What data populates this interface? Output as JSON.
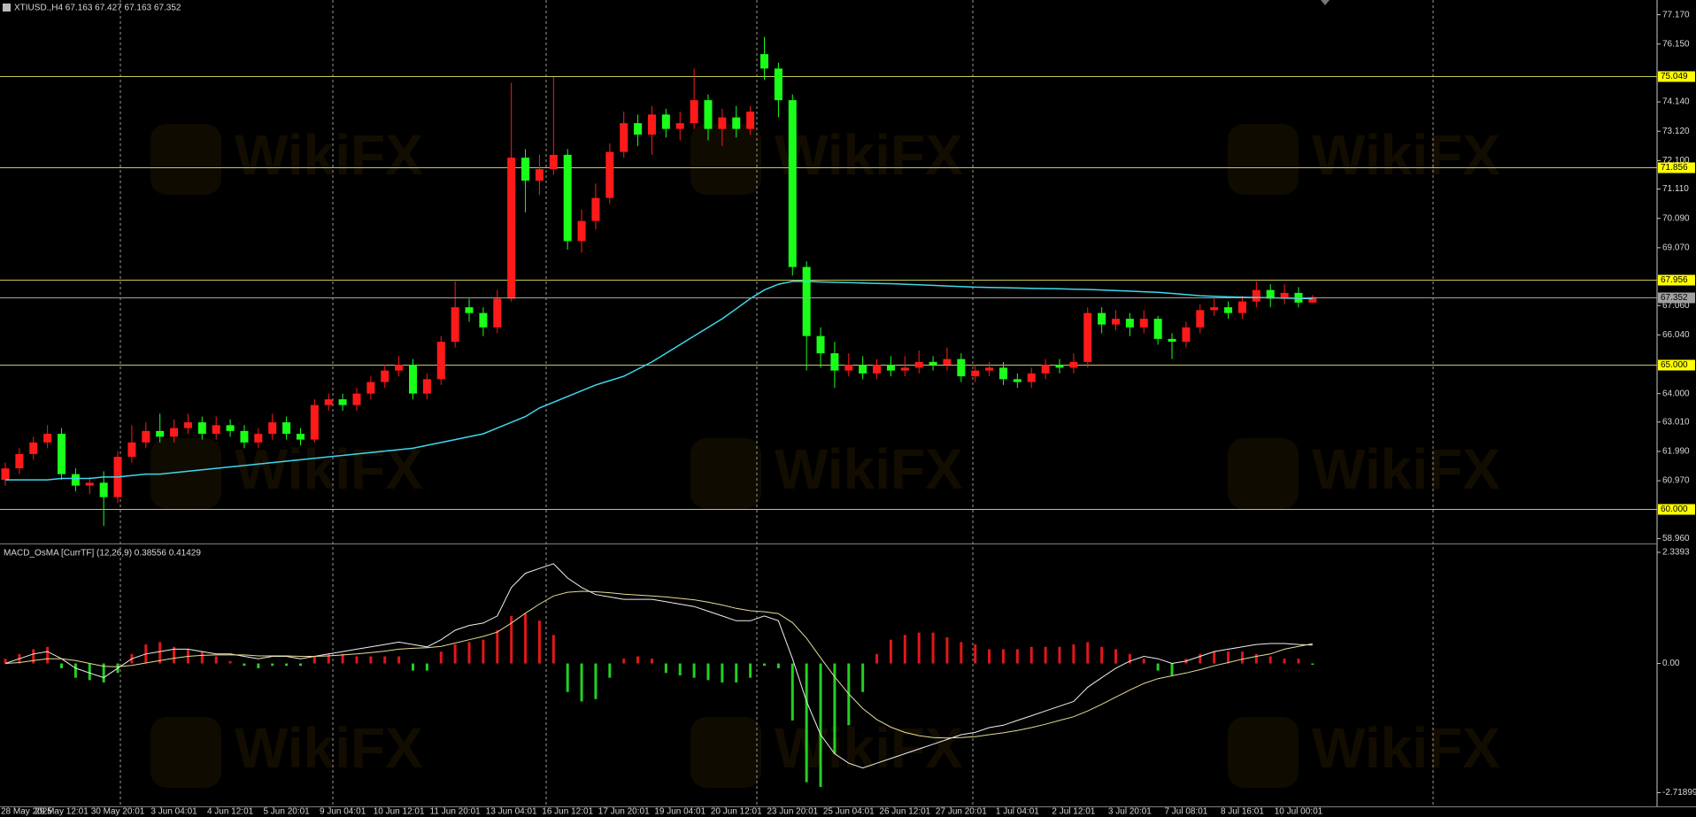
{
  "watermark": "WikiFX",
  "chart_data": [
    {
      "type": "candlestick",
      "title": "XTIUSD.,H4  67.163 67.427 67.163 67.352",
      "categories": [
        "28 May 2025",
        null,
        null,
        null,
        "29 May 12:01",
        null,
        null,
        null,
        "30 May 20:01",
        null,
        null,
        null,
        "3 Jun 04:01",
        null,
        null,
        null,
        "4 Jun 12:01",
        null,
        null,
        null,
        "5 Jun 20:01",
        null,
        null,
        null,
        "9 Jun 04:01",
        null,
        null,
        null,
        "10 Jun 12:01",
        null,
        null,
        null,
        "11 Jun 20:01",
        null,
        null,
        null,
        "13 Jun 04:01",
        null,
        null,
        null,
        "16 Jun 12:01",
        null,
        null,
        null,
        "17 Jun 20:01",
        null,
        null,
        null,
        "19 Jun 04:01",
        null,
        null,
        null,
        "20 Jun 12:01",
        null,
        null,
        null,
        "23 Jun 20:01",
        null,
        null,
        null,
        "25 Jun 04:01",
        null,
        null,
        null,
        "26 Jun 12:01",
        null,
        null,
        null,
        "27 Jun 20:01",
        null,
        null,
        null,
        "1 Jul 04:01",
        null,
        null,
        null,
        "2 Jul 12:01",
        null,
        null,
        null,
        "3 Jul 20:01",
        null,
        null,
        null,
        "7 Jul 08:01",
        null,
        null,
        null,
        "8 Jul 16:01",
        null,
        null,
        null,
        "10 Jul 00:01",
        null
      ],
      "open": [
        61.0,
        61.4,
        61.9,
        62.3,
        62.6,
        61.2,
        60.8,
        60.9,
        60.4,
        61.8,
        62.3,
        62.7,
        62.5,
        62.8,
        63.0,
        62.6,
        62.9,
        62.7,
        62.3,
        62.6,
        63.0,
        62.6,
        62.4,
        63.6,
        63.8,
        63.6,
        64.0,
        64.4,
        64.8,
        65.0,
        64.0,
        64.5,
        65.8,
        67.0,
        66.8,
        66.3,
        67.3,
        72.2,
        71.4,
        71.8,
        72.3,
        69.3,
        70.0,
        70.8,
        72.4,
        73.4,
        73.0,
        73.7,
        73.2,
        73.4,
        74.2,
        73.2,
        73.6,
        73.2,
        75.8,
        75.3,
        74.2,
        68.4,
        66.0,
        65.4,
        64.8,
        65.0,
        64.7,
        65.0,
        64.8,
        64.9,
        65.1,
        65.0,
        65.2,
        64.6,
        64.8,
        64.9,
        64.5,
        64.4,
        64.7,
        65.0,
        64.9,
        65.1,
        66.8,
        66.4,
        66.6,
        66.3,
        66.6,
        65.9,
        65.8,
        66.3,
        66.9,
        67.0,
        66.8,
        67.2,
        67.6,
        67.3,
        67.5,
        67.163
      ],
      "high": [
        61.6,
        62.1,
        62.5,
        62.9,
        62.8,
        61.4,
        61.1,
        61.3,
        62.0,
        62.9,
        63.0,
        63.3,
        63.1,
        63.3,
        63.2,
        63.2,
        63.1,
        62.9,
        62.8,
        63.3,
        63.2,
        62.8,
        63.8,
        64.0,
        64.0,
        64.2,
        64.6,
        65.0,
        65.3,
        65.2,
        64.7,
        66.0,
        67.9,
        67.3,
        67.0,
        67.6,
        74.8,
        72.5,
        72.3,
        75.0,
        72.5,
        70.4,
        71.3,
        72.7,
        73.8,
        73.7,
        74.0,
        73.9,
        73.8,
        75.3,
        74.4,
        73.9,
        74.0,
        74.0,
        76.4,
        75.5,
        74.4,
        68.6,
        66.3,
        65.8,
        65.4,
        65.3,
        65.2,
        65.3,
        65.3,
        65.5,
        65.3,
        65.6,
        65.4,
        65.0,
        65.1,
        65.1,
        64.7,
        64.9,
        65.2,
        65.2,
        65.4,
        67.0,
        67.0,
        66.9,
        66.8,
        66.9,
        66.7,
        66.1,
        66.5,
        67.1,
        67.3,
        67.2,
        67.4,
        67.9,
        67.8,
        67.8,
        67.7,
        67.427
      ],
      "low": [
        60.8,
        61.2,
        61.7,
        62.1,
        61.0,
        60.6,
        60.5,
        59.4,
        60.2,
        61.6,
        62.1,
        62.3,
        62.3,
        62.6,
        62.4,
        62.4,
        62.5,
        62.1,
        62.1,
        62.4,
        62.4,
        62.2,
        62.3,
        63.4,
        63.4,
        63.4,
        63.8,
        64.2,
        64.6,
        63.8,
        63.8,
        64.3,
        65.6,
        66.5,
        66.0,
        66.1,
        67.2,
        70.3,
        70.9,
        71.6,
        69.0,
        68.9,
        69.7,
        70.6,
        72.2,
        72.6,
        72.3,
        72.9,
        72.8,
        73.2,
        72.8,
        72.6,
        72.9,
        73.0,
        74.9,
        73.6,
        68.1,
        64.8,
        64.9,
        64.2,
        64.6,
        64.5,
        64.5,
        64.6,
        64.6,
        64.7,
        64.8,
        64.8,
        64.4,
        64.4,
        64.6,
        64.3,
        64.2,
        64.2,
        64.5,
        64.7,
        64.7,
        64.9,
        66.1,
        66.2,
        66.0,
        66.1,
        65.7,
        65.2,
        65.6,
        66.1,
        66.7,
        66.6,
        66.6,
        67.0,
        67.0,
        67.1,
        67.0,
        67.163
      ],
      "close": [
        61.4,
        61.9,
        62.3,
        62.6,
        61.2,
        60.8,
        60.9,
        60.4,
        61.8,
        62.3,
        62.7,
        62.5,
        62.8,
        63.0,
        62.6,
        62.9,
        62.7,
        62.3,
        62.6,
        63.0,
        62.6,
        62.4,
        63.6,
        63.8,
        63.6,
        64.0,
        64.4,
        64.8,
        65.0,
        64.0,
        64.5,
        65.8,
        67.0,
        66.8,
        66.3,
        67.3,
        72.2,
        71.4,
        71.8,
        72.3,
        69.3,
        70.0,
        70.8,
        72.4,
        73.4,
        73.0,
        73.7,
        73.2,
        73.4,
        74.2,
        73.2,
        73.6,
        73.2,
        73.8,
        75.3,
        74.2,
        68.4,
        66.0,
        65.4,
        64.8,
        65.0,
        64.7,
        65.0,
        64.8,
        64.9,
        65.1,
        65.0,
        65.2,
        64.6,
        64.8,
        64.9,
        64.5,
        64.4,
        64.7,
        65.0,
        64.9,
        65.1,
        66.8,
        66.4,
        66.6,
        66.3,
        66.6,
        65.9,
        65.8,
        66.3,
        66.9,
        67.0,
        66.8,
        67.2,
        67.6,
        67.3,
        67.5,
        67.163,
        67.352
      ],
      "up_color": "#ff1a1a",
      "down_color": "#1aff1a",
      "ma": {
        "color": "#3fd8ec",
        "values": [
          61.0,
          61.0,
          61.0,
          61.0,
          61.05,
          61.05,
          61.05,
          61.1,
          61.1,
          61.15,
          61.2,
          61.2,
          61.25,
          61.3,
          61.35,
          61.4,
          61.45,
          61.5,
          61.55,
          61.6,
          61.65,
          61.7,
          61.75,
          61.8,
          61.85,
          61.9,
          61.95,
          62.0,
          62.05,
          62.1,
          62.2,
          62.3,
          62.4,
          62.5,
          62.6,
          62.8,
          63.0,
          63.2,
          63.5,
          63.7,
          63.9,
          64.1,
          64.3,
          64.45,
          64.6,
          64.85,
          65.1,
          65.4,
          65.7,
          66.0,
          66.3,
          66.6,
          66.95,
          67.3,
          67.6,
          67.8,
          67.9,
          67.9,
          67.88,
          67.87,
          67.86,
          67.84,
          67.83,
          67.82,
          67.8,
          67.78,
          67.76,
          67.74,
          67.72,
          67.7,
          67.69,
          67.68,
          67.67,
          67.66,
          67.65,
          67.64,
          67.63,
          67.62,
          67.6,
          67.58,
          67.56,
          67.54,
          67.52,
          67.48,
          67.44,
          67.4,
          67.38,
          67.36,
          67.35,
          67.34,
          67.33,
          67.32,
          67.31,
          67.3
        ]
      },
      "levels": [
        75.049,
        71.856,
        67.956,
        {
          "value": 65,
          "label": "65.000"
        },
        {
          "value": 60,
          "label": "60.000"
        }
      ],
      "level_color": "#c8c858",
      "level_label_color": "#ffff00",
      "last_price": 67.352,
      "last_price_color": "#a0a0a0",
      "ylim": [
        58.85,
        77.62
      ],
      "yticks": [
        {
          "value": 77.17,
          "label": "77.170"
        },
        {
          "value": 76.15,
          "label": "76.150"
        },
        {
          "value": 74.14,
          "label": "74.140"
        },
        {
          "value": 73.12,
          "label": "73.120"
        },
        {
          "value": 72.1,
          "label": "72.100"
        },
        {
          "value": 71.11,
          "label": "71.110"
        },
        {
          "value": 70.09,
          "label": "70.090"
        },
        {
          "value": 69.07,
          "label": "69.070"
        },
        {
          "value": 67.06,
          "label": "67.060"
        },
        {
          "value": 66.04,
          "label": "66.040"
        },
        {
          "value": 64.0,
          "label": "64.000"
        },
        {
          "value": 63.01,
          "label": "63.010"
        },
        {
          "value": 61.99,
          "label": "61.990"
        },
        {
          "value": 60.97,
          "label": "60.970"
        },
        {
          "value": 58.96,
          "label": "58.960"
        }
      ]
    },
    {
      "type": "macd",
      "title": "MACD_OsMA [CurrTF] (12,26,9) 0.38556 0.41429",
      "histogram": [
        0.1,
        0.2,
        0.3,
        0.35,
        -0.1,
        -0.3,
        -0.35,
        -0.4,
        -0.2,
        0.2,
        0.4,
        0.45,
        0.35,
        0.3,
        0.25,
        0.15,
        0.05,
        -0.05,
        -0.1,
        -0.05,
        -0.05,
        -0.05,
        0.15,
        0.2,
        0.2,
        0.15,
        0.15,
        0.15,
        0.15,
        -0.15,
        -0.15,
        0.25,
        0.4,
        0.45,
        0.5,
        0.7,
        1.0,
        1.05,
        0.9,
        0.6,
        -0.6,
        -0.8,
        -0.75,
        -0.3,
        0.1,
        0.15,
        0.1,
        -0.2,
        -0.25,
        -0.3,
        -0.35,
        -0.4,
        -0.4,
        -0.3,
        -0.05,
        -0.1,
        -1.2,
        -2.5,
        -2.6,
        -1.9,
        -1.3,
        -0.6,
        0.2,
        0.5,
        0.6,
        0.65,
        0.65,
        0.55,
        0.45,
        0.4,
        0.3,
        0.3,
        0.3,
        0.35,
        0.35,
        0.35,
        0.4,
        0.45,
        0.35,
        0.3,
        0.2,
        0.1,
        -0.15,
        -0.25,
        0.1,
        0.2,
        0.25,
        0.25,
        0.25,
        0.2,
        0.15,
        0.1,
        0.1,
        -0.02873
      ],
      "pos_color": "#e01818",
      "neg_color": "#22d022",
      "series": [
        {
          "color": "#f0f0f0",
          "values": [
            0.0,
            0.1,
            0.2,
            0.25,
            0.1,
            -0.1,
            -0.2,
            -0.3,
            -0.1,
            0.1,
            0.2,
            0.25,
            0.3,
            0.3,
            0.25,
            0.2,
            0.2,
            0.15,
            0.1,
            0.15,
            0.15,
            0.1,
            0.15,
            0.2,
            0.25,
            0.3,
            0.35,
            0.4,
            0.45,
            0.4,
            0.35,
            0.5,
            0.7,
            0.8,
            0.85,
            1.0,
            1.6,
            1.9,
            2.0,
            2.1,
            1.8,
            1.6,
            1.45,
            1.4,
            1.35,
            1.35,
            1.35,
            1.3,
            1.25,
            1.2,
            1.1,
            1.0,
            0.9,
            0.9,
            1.0,
            0.9,
            0.1,
            -0.8,
            -1.5,
            -1.9,
            -2.1,
            -2.2,
            -2.1,
            -2.0,
            -1.9,
            -1.8,
            -1.7,
            -1.6,
            -1.5,
            -1.45,
            -1.35,
            -1.3,
            -1.2,
            -1.1,
            -1.0,
            -0.9,
            -0.8,
            -0.5,
            -0.3,
            -0.1,
            0.05,
            0.15,
            0.1,
            0.0,
            0.05,
            0.15,
            0.25,
            0.3,
            0.35,
            0.4,
            0.42,
            0.42,
            0.4,
            0.386
          ]
        },
        {
          "color": "#e6dc96",
          "values": [
            0.0,
            0.02,
            0.06,
            0.1,
            0.1,
            0.06,
            0.0,
            -0.06,
            -0.07,
            -0.04,
            0.01,
            0.06,
            0.11,
            0.15,
            0.17,
            0.18,
            0.18,
            0.18,
            0.16,
            0.16,
            0.16,
            0.15,
            0.15,
            0.16,
            0.18,
            0.2,
            0.23,
            0.26,
            0.3,
            0.32,
            0.33,
            0.36,
            0.43,
            0.5,
            0.57,
            0.66,
            0.85,
            1.06,
            1.25,
            1.42,
            1.5,
            1.52,
            1.51,
            1.49,
            1.46,
            1.44,
            1.42,
            1.4,
            1.37,
            1.34,
            1.29,
            1.23,
            1.16,
            1.11,
            1.09,
            1.05,
            0.86,
            0.53,
            0.12,
            -0.28,
            -0.64,
            -0.95,
            -1.18,
            -1.34,
            -1.45,
            -1.52,
            -1.56,
            -1.57,
            -1.56,
            -1.54,
            -1.5,
            -1.46,
            -1.41,
            -1.35,
            -1.28,
            -1.2,
            -1.12,
            -1.0,
            -0.86,
            -0.71,
            -0.56,
            -0.42,
            -0.32,
            -0.26,
            -0.2,
            -0.13,
            -0.05,
            0.02,
            0.09,
            0.15,
            0.2,
            0.3,
            0.36,
            0.414
          ]
        }
      ],
      "ylim": [
        -2.99,
        2.47
      ],
      "yticks": [
        2.3393,
        {
          "value": 0,
          "label": "0.00"
        },
        -2.71899
      ]
    }
  ]
}
